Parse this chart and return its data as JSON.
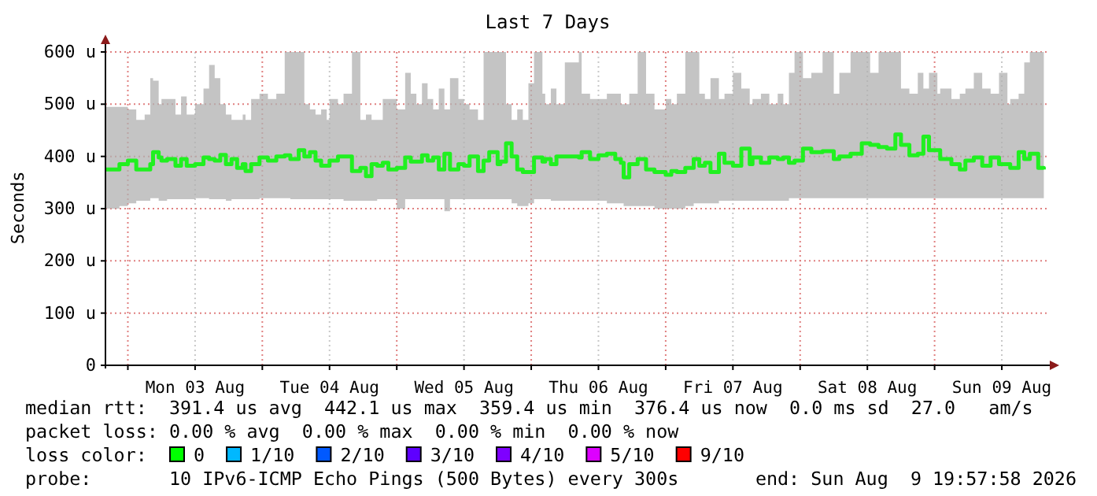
{
  "chart_data": {
    "type": "step",
    "title": "Last 7 Days",
    "ylabel": "Seconds",
    "xlim": [
      "2026-08-02T20:00",
      "2026-08-09T20:00"
    ],
    "xticks": [
      {
        "value": "2026-08-03T00:00",
        "label": null
      },
      {
        "value": "2026-08-03T12:00",
        "label": "Mon 03 Aug"
      },
      {
        "value": "2026-08-04T00:00",
        "label": null
      },
      {
        "value": "2026-08-04T12:00",
        "label": "Tue 04 Aug"
      },
      {
        "value": "2026-08-05T00:00",
        "label": null
      },
      {
        "value": "2026-08-05T12:00",
        "label": "Wed 05 Aug"
      },
      {
        "value": "2026-08-06T00:00",
        "label": null
      },
      {
        "value": "2026-08-06T12:00",
        "label": "Thu 06 Aug"
      },
      {
        "value": "2026-08-07T00:00",
        "label": null
      },
      {
        "value": "2026-08-07T12:00",
        "label": "Fri 07 Aug"
      },
      {
        "value": "2026-08-08T00:00",
        "label": null
      },
      {
        "value": "2026-08-08T12:00",
        "label": "Sat 08 Aug"
      },
      {
        "value": "2026-08-09T00:00",
        "label": null
      },
      {
        "value": "2026-08-09T12:00",
        "label": "Sun 09 Aug"
      }
    ],
    "ylim": [
      0,
      600
    ],
    "yticks": [
      0,
      {
        "value": 100,
        "label": "100 u"
      },
      {
        "value": 200,
        "label": "200 u"
      },
      {
        "value": 300,
        "label": "300 u"
      },
      {
        "value": 400,
        "label": "400 u"
      },
      {
        "value": 500,
        "label": "500 u"
      },
      {
        "value": 600,
        "label": "600 u"
      }
    ],
    "grid": true,
    "x": [
      "2026-08-02T20:00",
      "2026-08-02T22:30",
      "2026-08-03T00:00",
      "2026-08-03T01:30",
      "2026-08-03T03:00",
      "2026-08-03T04:00",
      "2026-08-03T04:30",
      "2026-08-03T05:30",
      "2026-08-03T06:00",
      "2026-08-03T07:00",
      "2026-08-03T08:30",
      "2026-08-03T09:30",
      "2026-08-03T10:30",
      "2026-08-03T12:00",
      "2026-08-03T13:30",
      "2026-08-03T14:30",
      "2026-08-03T15:30",
      "2026-08-03T16:30",
      "2026-08-03T17:30",
      "2026-08-03T18:30",
      "2026-08-03T19:30",
      "2026-08-03T20:30",
      "2026-08-03T21:00",
      "2026-08-03T22:00",
      "2026-08-03T23:30",
      "2026-08-04T01:00",
      "2026-08-04T02:30",
      "2026-08-04T04:00",
      "2026-08-04T05:00",
      "2026-08-04T06:30",
      "2026-08-04T07:30",
      "2026-08-04T08:30",
      "2026-08-04T09:30",
      "2026-08-04T10:30",
      "2026-08-04T11:30",
      "2026-08-04T12:00",
      "2026-08-04T13:30",
      "2026-08-04T14:30",
      "2026-08-04T16:00",
      "2026-08-04T17:30",
      "2026-08-04T18:30",
      "2026-08-04T19:30",
      "2026-08-04T20:30",
      "2026-08-04T21:30",
      "2026-08-04T22:30",
      "2026-08-05T00:00",
      "2026-08-05T01:30",
      "2026-08-05T02:30",
      "2026-08-05T03:30",
      "2026-08-05T04:30",
      "2026-08-05T05:30",
      "2026-08-05T06:30",
      "2026-08-05T07:30",
      "2026-08-05T08:30",
      "2026-08-05T09:30",
      "2026-08-05T11:00",
      "2026-08-05T12:00",
      "2026-08-05T13:00",
      "2026-08-05T14:30",
      "2026-08-05T15:30",
      "2026-08-05T16:30",
      "2026-08-05T18:00",
      "2026-08-05T18:30",
      "2026-08-05T19:30",
      "2026-08-05T20:30",
      "2026-08-05T21:30",
      "2026-08-05T22:30",
      "2026-08-05T23:30",
      "2026-08-06T00:30",
      "2026-08-06T02:00",
      "2026-08-06T02:30",
      "2026-08-06T03:30",
      "2026-08-06T04:30",
      "2026-08-06T06:00",
      "2026-08-06T08:30",
      "2026-08-06T09:00",
      "2026-08-06T10:30",
      "2026-08-06T12:00",
      "2026-08-06T13:30",
      "2026-08-06T15:00",
      "2026-08-06T16:00",
      "2026-08-06T16:30",
      "2026-08-06T17:30",
      "2026-08-06T19:00",
      "2026-08-06T20:30",
      "2026-08-06T22:00",
      "2026-08-07T00:00",
      "2026-08-07T01:00",
      "2026-08-07T02:00",
      "2026-08-07T03:30",
      "2026-08-07T05:00",
      "2026-08-07T06:00",
      "2026-08-07T07:00",
      "2026-08-07T08:00",
      "2026-08-07T09:30",
      "2026-08-07T10:30",
      "2026-08-07T12:00",
      "2026-08-07T13:30",
      "2026-08-07T15:00",
      "2026-08-07T15:30",
      "2026-08-07T17:00",
      "2026-08-07T18:30",
      "2026-08-07T20:00",
      "2026-08-07T21:00",
      "2026-08-07T22:00",
      "2026-08-07T23:00",
      "2026-08-08T00:30",
      "2026-08-08T02:00",
      "2026-08-08T04:00",
      "2026-08-08T06:00",
      "2026-08-08T07:00",
      "2026-08-08T09:00",
      "2026-08-08T11:00",
      "2026-08-08T12:30",
      "2026-08-08T14:00",
      "2026-08-08T15:30",
      "2026-08-08T17:00",
      "2026-08-08T18:00",
      "2026-08-08T19:30",
      "2026-08-08T21:00",
      "2026-08-08T22:00",
      "2026-08-08T23:00",
      "2026-08-09T00:30",
      "2026-08-09T01:00",
      "2026-08-09T03:00",
      "2026-08-09T04:30",
      "2026-08-09T05:30",
      "2026-08-09T07:00",
      "2026-08-09T08:30",
      "2026-08-09T10:00",
      "2026-08-09T11:30",
      "2026-08-09T13:00",
      "2026-08-09T13:30",
      "2026-08-09T15:00",
      "2026-08-09T16:00",
      "2026-08-09T17:00",
      "2026-08-09T18:30",
      "2026-08-09T19:30"
    ],
    "series": [
      {
        "color": "#20f020",
        "values": [
          375,
          385,
          392,
          375,
          375,
          385,
          408,
          398,
          392,
          395,
          382,
          395,
          382,
          385,
          398,
          395,
          392,
          403,
          385,
          395,
          378,
          385,
          372,
          385,
          398,
          392,
          400,
          402,
          395,
          412,
          400,
          408,
          392,
          382,
          382,
          392,
          400,
          400,
          372,
          378,
          362,
          385,
          382,
          388,
          375,
          378,
          398,
          390,
          390,
          402,
          392,
          398,
          375,
          405,
          375,
          385,
          382,
          400,
          372,
          392,
          408,
          385,
          390,
          425,
          400,
          375,
          370,
          370,
          398,
          390,
          395,
          385,
          400,
          400,
          398,
          408,
          395,
          402,
          405,
          395,
          388,
          360,
          385,
          395,
          375,
          370,
          365,
          372,
          370,
          378,
          395,
          382,
          388,
          370,
          405,
          388,
          382,
          415,
          385,
          398,
          388,
          398,
          395,
          398,
          388,
          392,
          415,
          408,
          410,
          395,
          400,
          405,
          425,
          422,
          418,
          415,
          442,
          422,
          402,
          405,
          438,
          412,
          412,
          395,
          385,
          375,
          392,
          398,
          382,
          398,
          385,
          385,
          378,
          408,
          395,
          405,
          378,
          375
        ],
        "lower": [
          300,
          305,
          310,
          315,
          315,
          320,
          320,
          315,
          315,
          318,
          318,
          318,
          318,
          320,
          320,
          318,
          318,
          318,
          315,
          318,
          318,
          318,
          318,
          318,
          320,
          320,
          320,
          320,
          318,
          318,
          318,
          318,
          318,
          318,
          318,
          318,
          318,
          315,
          315,
          315,
          315,
          315,
          318,
          318,
          318,
          300,
          318,
          318,
          318,
          318,
          318,
          318,
          318,
          295,
          318,
          318,
          318,
          318,
          318,
          318,
          318,
          318,
          318,
          318,
          310,
          305,
          305,
          310,
          318,
          318,
          318,
          315,
          315,
          315,
          315,
          315,
          315,
          315,
          310,
          310,
          310,
          305,
          305,
          305,
          305,
          300,
          300,
          300,
          300,
          305,
          310,
          310,
          310,
          310,
          315,
          315,
          315,
          315,
          315,
          315,
          315,
          315,
          315,
          315,
          320,
          320,
          320,
          320,
          320,
          320,
          320,
          320,
          320,
          320,
          320,
          320,
          320,
          320,
          320,
          320,
          320,
          320,
          320,
          320,
          320,
          320,
          320,
          320,
          320,
          320,
          320,
          320,
          320,
          320,
          320,
          320,
          320,
          320
        ],
        "upper": [
          495,
          495,
          490,
          470,
          480,
          550,
          545,
          500,
          510,
          510,
          480,
          515,
          480,
          500,
          530,
          575,
          550,
          500,
          480,
          470,
          470,
          480,
          470,
          510,
          520,
          510,
          520,
          600,
          600,
          600,
          500,
          490,
          480,
          490,
          470,
          510,
          500,
          520,
          600,
          470,
          480,
          470,
          470,
          510,
          510,
          490,
          560,
          520,
          500,
          540,
          510,
          490,
          530,
          490,
          550,
          510,
          500,
          490,
          470,
          600,
          600,
          600,
          600,
          500,
          470,
          490,
          470,
          540,
          600,
          520,
          500,
          530,
          500,
          580,
          600,
          520,
          510,
          510,
          520,
          520,
          500,
          500,
          520,
          600,
          520,
          490,
          510,
          500,
          520,
          600,
          600,
          520,
          510,
          550,
          510,
          520,
          560,
          530,
          500,
          510,
          520,
          500,
          520,
          500,
          560,
          600,
          550,
          560,
          600,
          520,
          560,
          600,
          600,
          560,
          600,
          600,
          600,
          530,
          520,
          560,
          530,
          560,
          520,
          530,
          510,
          520,
          530,
          560,
          530,
          520,
          560,
          500,
          510,
          520,
          580,
          600,
          600,
          520
        ]
      }
    ],
    "annotations": [
      "median rtt:  391.4 us avg  442.1 us max  359.4 us min  376.4 us now  0.0 ms sd  27.0   am/s",
      "packet loss: 0.00 % avg  0.00 % max  0.00 % min  0.00 % now",
      "loss color:",
      "0",
      "1/10",
      "2/10",
      "3/10",
      "4/10",
      "5/10",
      "9/10",
      "probe:       10 IPv6-ICMP Echo Pings (500 Bytes) every 300s",
      "end: Sun Aug  9 19:57:58 2026"
    ]
  }
}
